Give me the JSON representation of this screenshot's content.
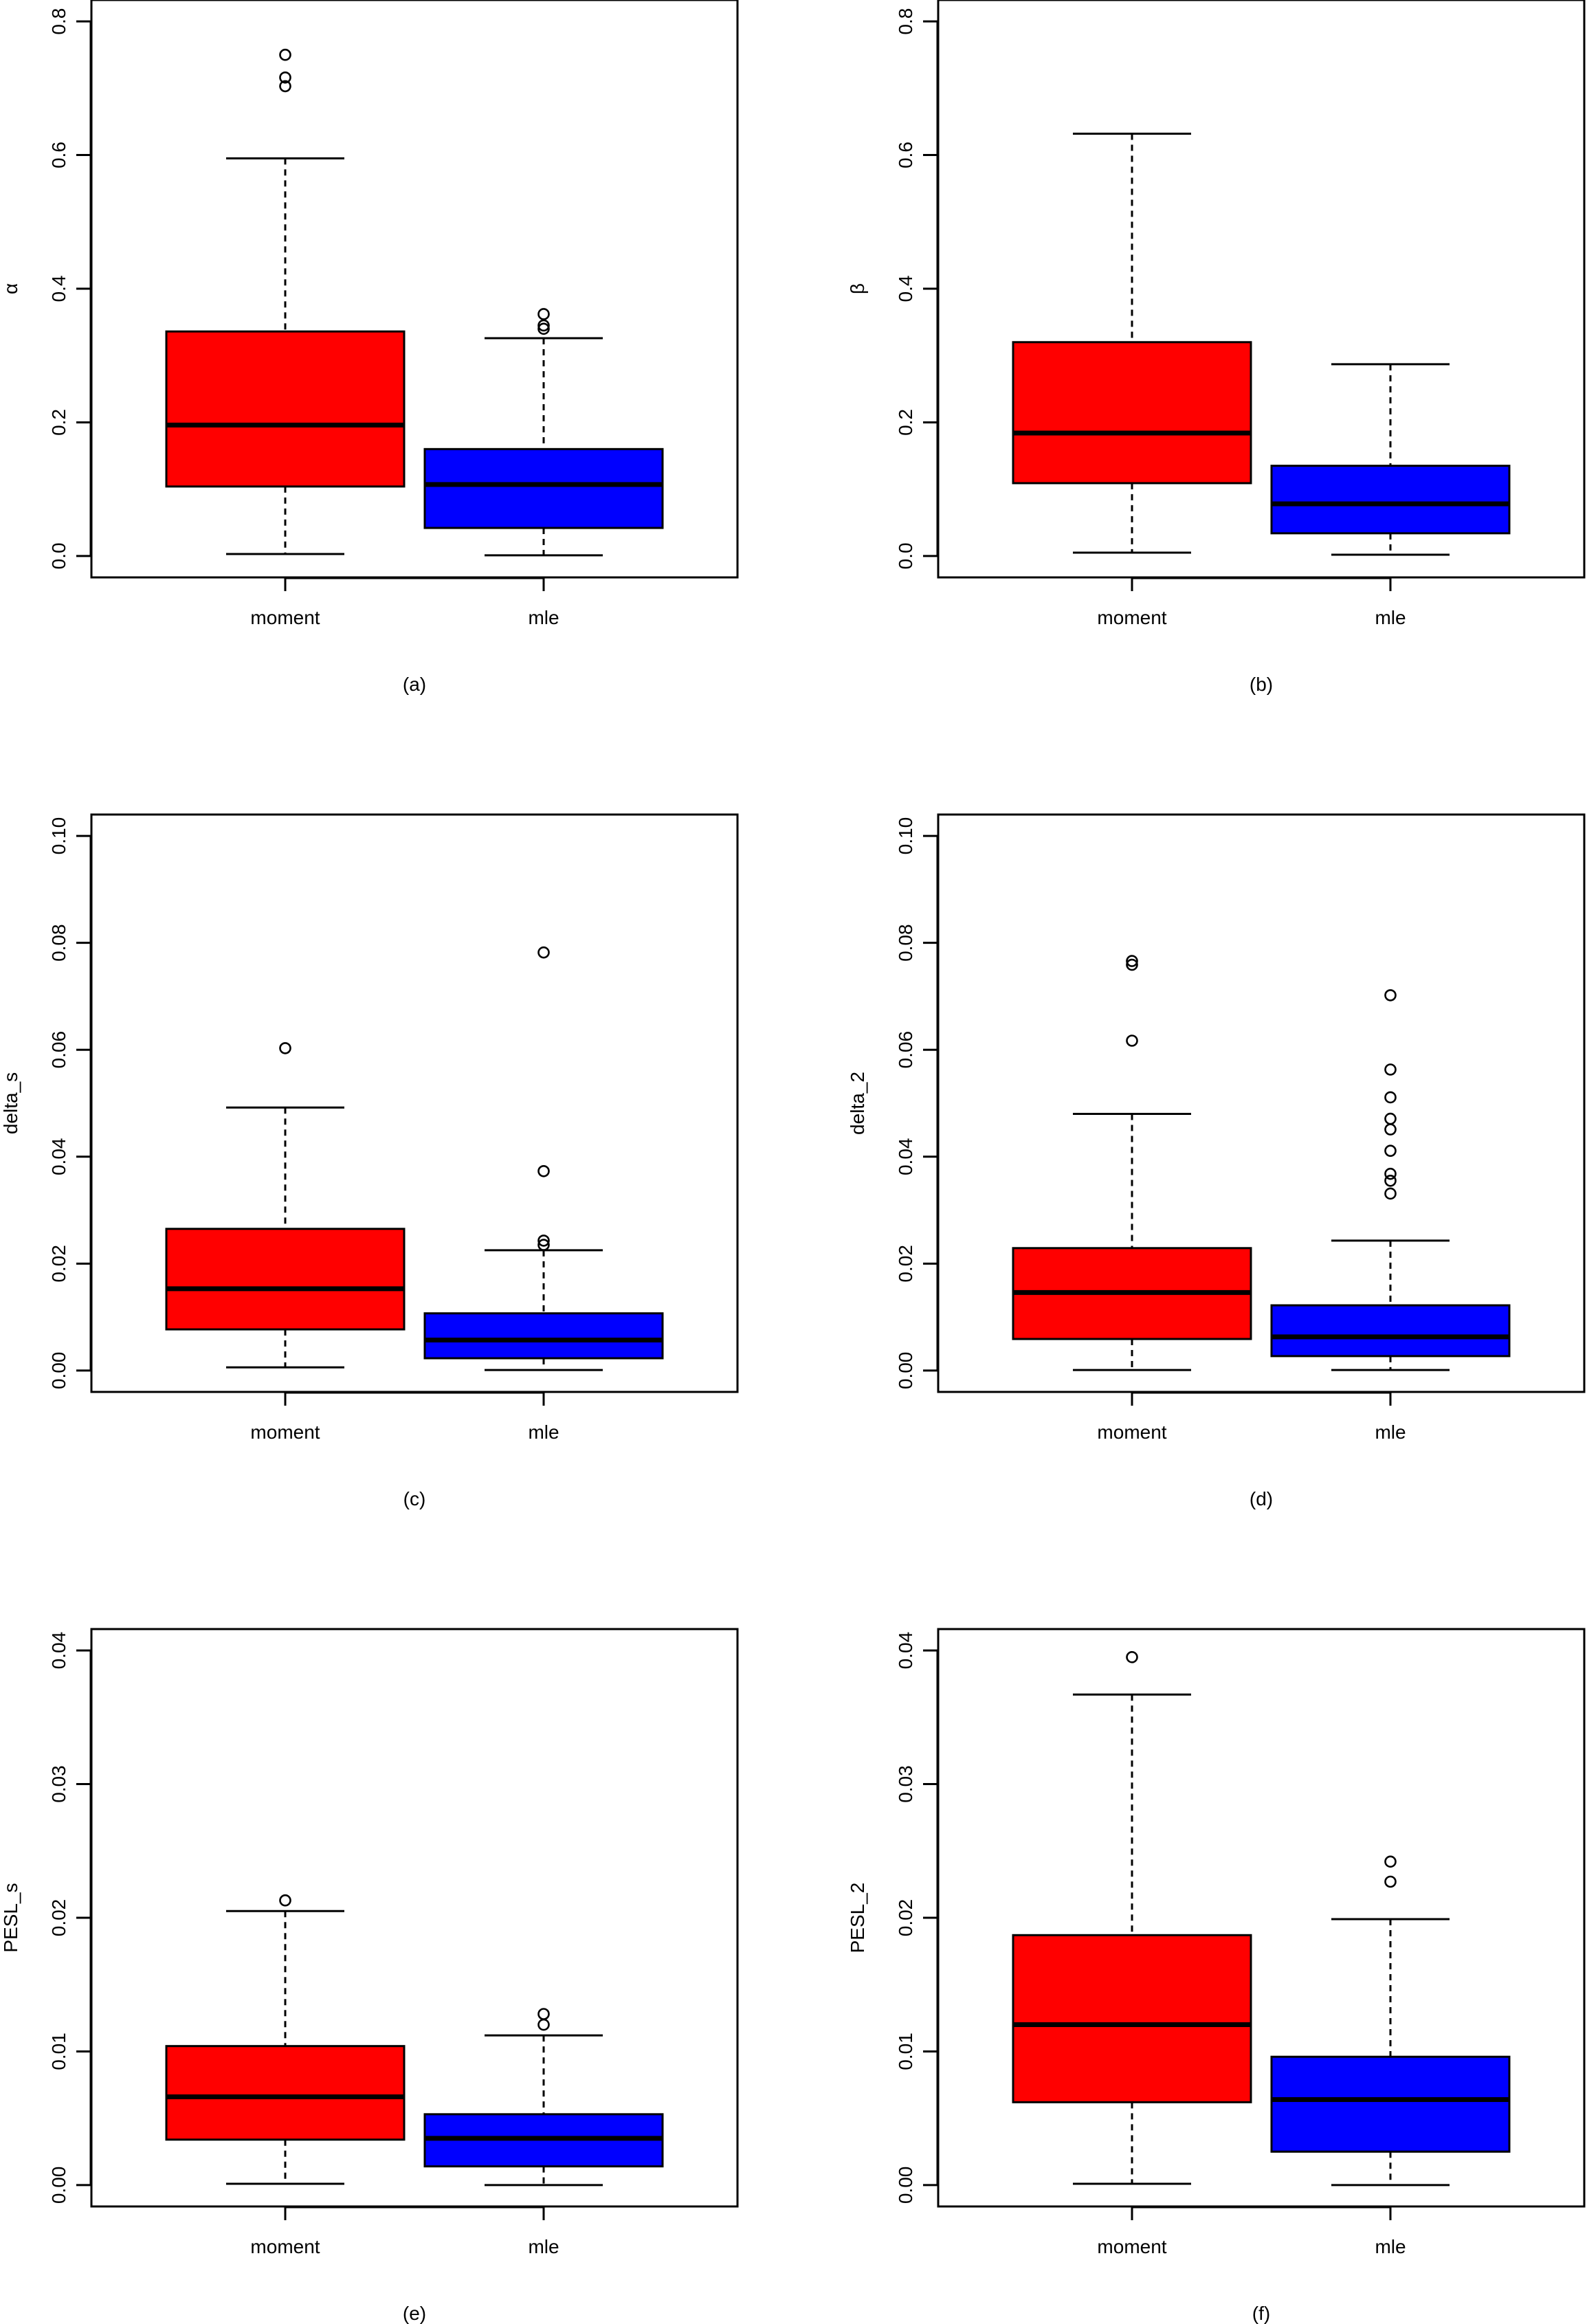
{
  "figure": {
    "background": "#ffffff"
  },
  "colors": {
    "moment": "#ff0000",
    "mle": "#0000ff",
    "median": "#000000",
    "frame": "#000000"
  },
  "chart_data": [
    {
      "type": "boxplot",
      "caption": "(a)",
      "ylabel": "α",
      "ylim": [
        0,
        0.8
      ],
      "yticks": [
        0.0,
        0.2,
        0.4,
        0.6,
        0.8
      ],
      "ytick_labels": [
        "0.0",
        "0.2",
        "0.4",
        "0.6",
        "0.8"
      ],
      "categories": [
        "moment",
        "mle"
      ],
      "boxes": [
        {
          "name": "moment",
          "whisker_low": 0.003,
          "q1": 0.104,
          "median": 0.196,
          "q3": 0.336,
          "whisker_high": 0.595,
          "outliers": [
            0.703,
            0.716,
            0.75
          ]
        },
        {
          "name": "mle",
          "whisker_low": 0.001,
          "q1": 0.042,
          "median": 0.107,
          "q3": 0.16,
          "whisker_high": 0.326,
          "outliers": [
            0.34,
            0.345,
            0.362
          ]
        }
      ]
    },
    {
      "type": "boxplot",
      "caption": "(b)",
      "ylabel": "β",
      "ylim": [
        0,
        0.8
      ],
      "yticks": [
        0.0,
        0.2,
        0.4,
        0.6,
        0.8
      ],
      "ytick_labels": [
        "0.0",
        "0.2",
        "0.4",
        "0.6",
        "0.8"
      ],
      "categories": [
        "moment",
        "mle"
      ],
      "boxes": [
        {
          "name": "moment",
          "whisker_low": 0.005,
          "q1": 0.109,
          "median": 0.184,
          "q3": 0.32,
          "whisker_high": 0.632,
          "outliers": []
        },
        {
          "name": "mle",
          "whisker_low": 0.002,
          "q1": 0.034,
          "median": 0.078,
          "q3": 0.135,
          "whisker_high": 0.287,
          "outliers": []
        }
      ]
    },
    {
      "type": "boxplot",
      "caption": "(c)",
      "ylabel": "delta_s",
      "ylim": [
        0,
        0.1
      ],
      "yticks": [
        0.0,
        0.02,
        0.04,
        0.06,
        0.08,
        0.1
      ],
      "ytick_labels": [
        "0.00",
        "0.02",
        "0.04",
        "0.06",
        "0.08",
        "0.10"
      ],
      "categories": [
        "moment",
        "mle"
      ],
      "boxes": [
        {
          "name": "moment",
          "whisker_low": 0.0006,
          "q1": 0.0077,
          "median": 0.0153,
          "q3": 0.0265,
          "whisker_high": 0.0492,
          "outliers": [
            0.0603
          ]
        },
        {
          "name": "mle",
          "whisker_low": 0.0001,
          "q1": 0.0023,
          "median": 0.0057,
          "q3": 0.0107,
          "whisker_high": 0.0225,
          "outliers": [
            0.0235,
            0.0243,
            0.0373,
            0.0782
          ]
        }
      ]
    },
    {
      "type": "boxplot",
      "caption": "(d)",
      "ylabel": "delta_2",
      "ylim": [
        0,
        0.1
      ],
      "yticks": [
        0.0,
        0.02,
        0.04,
        0.06,
        0.08,
        0.1
      ],
      "ytick_labels": [
        "0.00",
        "0.02",
        "0.04",
        "0.06",
        "0.08",
        "0.10"
      ],
      "categories": [
        "moment",
        "mle"
      ],
      "boxes": [
        {
          "name": "moment",
          "whisker_low": 0.0001,
          "q1": 0.0059,
          "median": 0.0146,
          "q3": 0.0229,
          "whisker_high": 0.048,
          "outliers": [
            0.0617,
            0.0759,
            0.0766
          ]
        },
        {
          "name": "mle",
          "whisker_low": 0.0001,
          "q1": 0.0027,
          "median": 0.0063,
          "q3": 0.0122,
          "whisker_high": 0.0243,
          "outliers": [
            0.0331,
            0.0355,
            0.0368,
            0.0411,
            0.0451,
            0.0471,
            0.0511,
            0.0563,
            0.0702
          ]
        }
      ]
    },
    {
      "type": "boxplot",
      "caption": "(e)",
      "ylabel": "PESL_s",
      "ylim": [
        0,
        0.04
      ],
      "yticks": [
        0.0,
        0.01,
        0.02,
        0.03,
        0.04
      ],
      "ytick_labels": [
        "0.00",
        "0.01",
        "0.02",
        "0.03",
        "0.04"
      ],
      "categories": [
        "moment",
        "mle"
      ],
      "boxes": [
        {
          "name": "moment",
          "whisker_low": 0.0001,
          "q1": 0.0034,
          "median": 0.0066,
          "q3": 0.0104,
          "whisker_high": 0.0205,
          "outliers": [
            0.0213
          ]
        },
        {
          "name": "mle",
          "whisker_low": 0.0,
          "q1": 0.0014,
          "median": 0.0035,
          "q3": 0.0053,
          "whisker_high": 0.0112,
          "outliers": [
            0.012,
            0.0128
          ]
        }
      ]
    },
    {
      "type": "boxplot",
      "caption": "(f)",
      "ylabel": "PESL_2",
      "ylim": [
        0,
        0.04
      ],
      "yticks": [
        0.0,
        0.01,
        0.02,
        0.03,
        0.04
      ],
      "ytick_labels": [
        "0.00",
        "0.01",
        "0.02",
        "0.03",
        "0.04"
      ],
      "categories": [
        "moment",
        "mle"
      ],
      "boxes": [
        {
          "name": "moment",
          "whisker_low": 0.0001,
          "q1": 0.0062,
          "median": 0.012,
          "q3": 0.0187,
          "whisker_high": 0.0367,
          "outliers": [
            0.0395
          ]
        },
        {
          "name": "mle",
          "whisker_low": 0.0,
          "q1": 0.0025,
          "median": 0.0064,
          "q3": 0.0096,
          "whisker_high": 0.0199,
          "outliers": [
            0.0227,
            0.0242
          ]
        }
      ]
    }
  ]
}
